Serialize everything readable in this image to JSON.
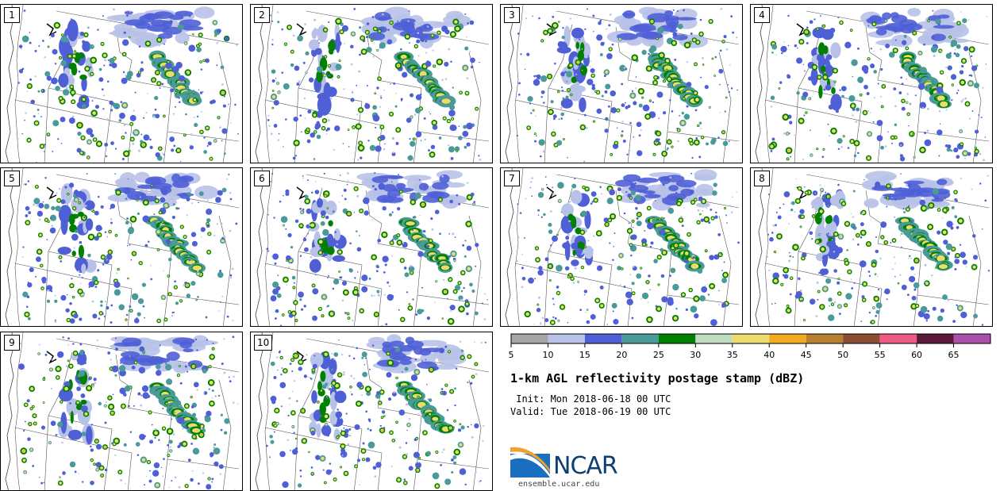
{
  "panels": [
    {
      "label": "1",
      "seed": 11
    },
    {
      "label": "2",
      "seed": 23
    },
    {
      "label": "3",
      "seed": 37
    },
    {
      "label": "4",
      "seed": 41
    },
    {
      "label": "5",
      "seed": 53
    },
    {
      "label": "6",
      "seed": 67
    },
    {
      "label": "7",
      "seed": 71
    },
    {
      "label": "8",
      "seed": 83
    },
    {
      "label": "9",
      "seed": 97
    },
    {
      "label": "10",
      "seed": 101
    }
  ],
  "colorbar": {
    "colors": [
      "#a6a6a6",
      "#b8c2e8",
      "#4f5fd6",
      "#4a9a9a",
      "#008000",
      "#bfdcc0",
      "#eedb6e",
      "#f0ac1e",
      "#b8802e",
      "#8a4f33",
      "#ef5a85",
      "#5c1a3a",
      "#aa4faa"
    ],
    "tick_labels": [
      "5",
      "10",
      "15",
      "20",
      "25",
      "30",
      "35",
      "40",
      "45",
      "50",
      "55",
      "60",
      "65"
    ]
  },
  "legend": {
    "title": "1-km AGL reflectivity postage stamp (dBZ)",
    "init": " Init: Mon 2018-06-18 00 UTC",
    "valid": "Valid: Tue 2018-06-19 00 UTC"
  },
  "logo": {
    "name": "NCAR",
    "url": "ensemble.ucar.edu"
  }
}
